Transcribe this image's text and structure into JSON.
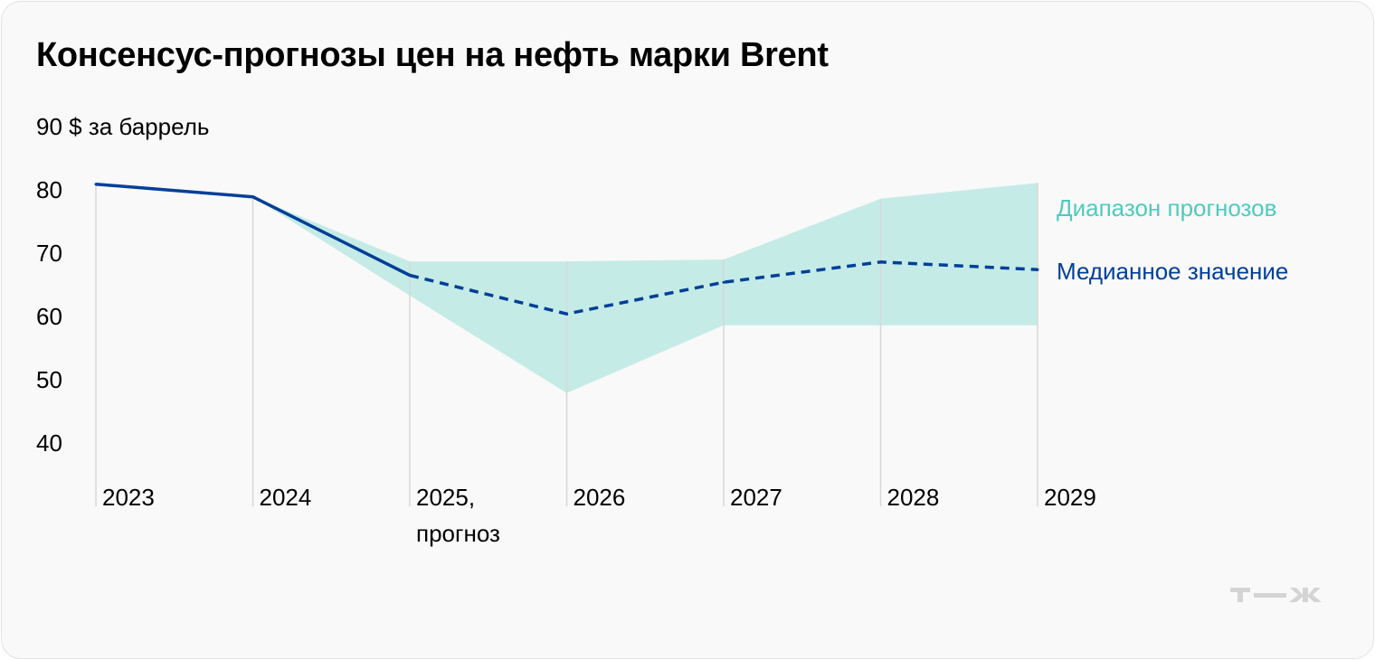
{
  "title": "Консенсус-прогнозы цен на нефть марки Brent",
  "chart_data": {
    "type": "line",
    "title": "Консенсус-прогнозы цен на нефть марки Brent",
    "ylabel": "$ за баррель",
    "yticks": [
      "90 $ за баррель",
      "80",
      "70",
      "60",
      "50",
      "40"
    ],
    "ylim": [
      40,
      90
    ],
    "grid": "vertical",
    "categories": [
      "2023",
      "2024",
      "2025, прогноз",
      "2026",
      "2027",
      "2028",
      "2029"
    ],
    "series": [
      {
        "name": "Медианное значение",
        "values": [
          80.9,
          78.9,
          66.5,
          60.4,
          65.4,
          68.6,
          67.4
        ],
        "color": "#003f98",
        "style": "solid through 2024, dashed after"
      },
      {
        "name": "Диапазон прогнозов",
        "type": "range",
        "low": [
          null,
          78.9,
          63.3,
          47.9,
          58.6,
          58.6,
          58.6
        ],
        "high": [
          null,
          78.9,
          68.7,
          68.7,
          69.0,
          78.6,
          81.1
        ],
        "color": "#c5ebe7"
      }
    ],
    "legend": "right, inline labels"
  },
  "legend": {
    "range_label": "Диапазон прогнозов",
    "median_label": "Медианное значение",
    "range_color": "#4fcbbd",
    "median_color": "#003f98"
  },
  "logo": "т—ж"
}
